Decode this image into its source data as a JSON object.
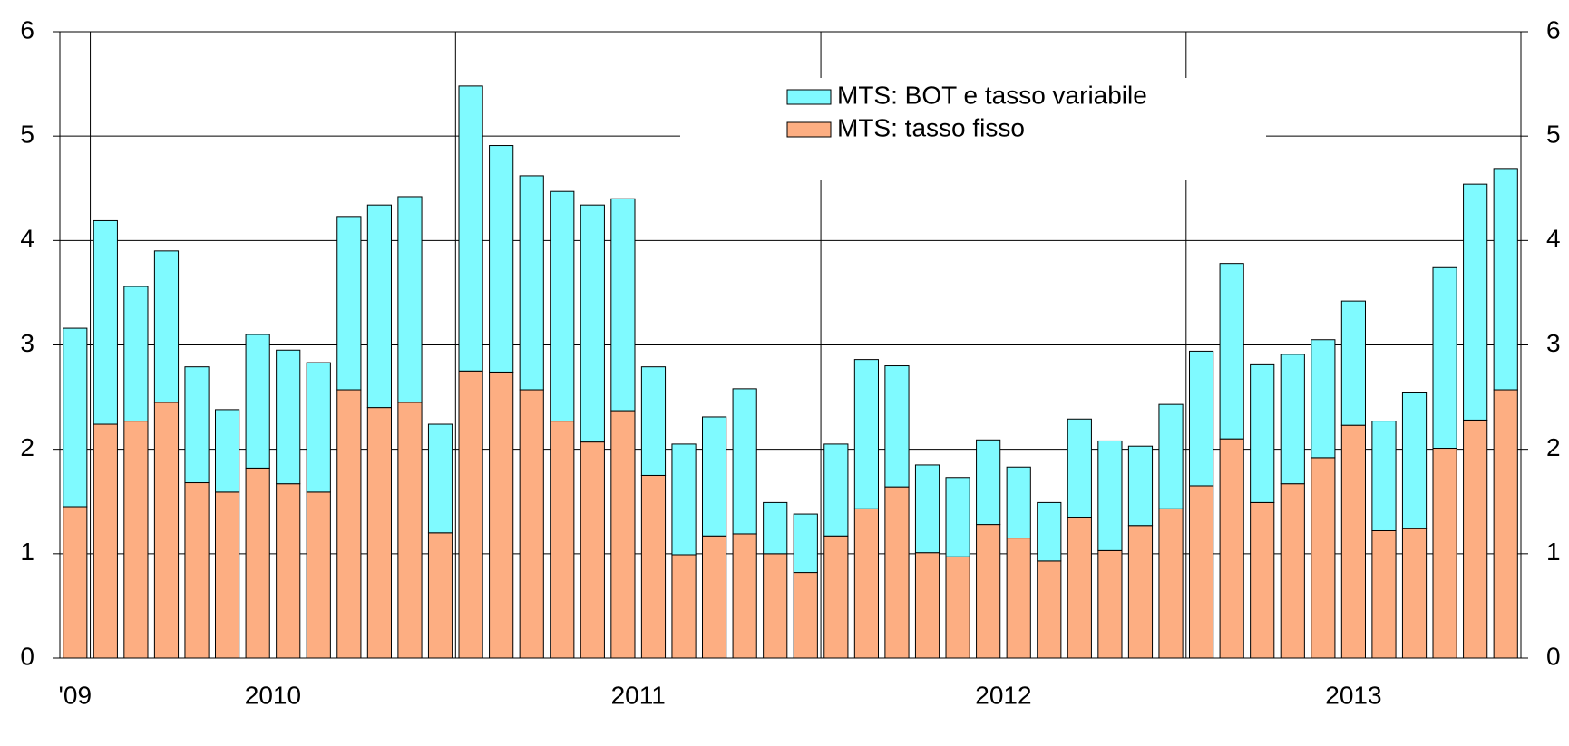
{
  "chart_data": {
    "type": "stacked-bar",
    "categories": [
      "'09",
      "2010",
      null,
      null,
      null,
      null,
      null,
      null,
      null,
      null,
      null,
      null,
      null,
      "2011",
      null,
      null,
      null,
      null,
      null,
      null,
      null,
      null,
      null,
      null,
      null,
      "2012",
      null,
      null,
      null,
      null,
      null,
      null,
      null,
      null,
      null,
      null,
      null,
      "2013",
      null,
      null,
      null,
      null,
      null,
      null,
      null,
      null,
      null,
      null
    ],
    "series": [
      {
        "name": "MTS: tasso fisso",
        "color": "#fdae82",
        "values": [
          1.45,
          2.24,
          2.27,
          2.45,
          1.68,
          1.59,
          1.82,
          1.67,
          1.59,
          2.57,
          2.4,
          2.45,
          1.2,
          2.75,
          2.74,
          2.57,
          2.27,
          2.07,
          2.37,
          1.75,
          0.99,
          1.17,
          1.19,
          1.0,
          0.82,
          1.17,
          1.43,
          1.64,
          1.01,
          0.97,
          1.28,
          1.15,
          0.93,
          1.35,
          1.03,
          1.27,
          1.43,
          1.65,
          2.1,
          1.49,
          1.67,
          1.92,
          2.23,
          1.22,
          1.24,
          2.01,
          2.28,
          2.57
        ]
      },
      {
        "name": "MTS: BOT e tasso variabile",
        "color": "#7ffaff",
        "values": [
          1.71,
          1.95,
          1.29,
          1.45,
          1.11,
          0.79,
          1.28,
          1.28,
          1.24,
          1.66,
          1.94,
          1.97,
          1.04,
          2.73,
          2.17,
          2.05,
          2.2,
          2.27,
          2.03,
          1.04,
          1.06,
          1.14,
          1.39,
          0.49,
          0.56,
          0.88,
          1.43,
          1.16,
          0.84,
          0.76,
          0.81,
          0.68,
          0.56,
          0.94,
          1.05,
          0.76,
          1.0,
          1.29,
          1.68,
          1.32,
          1.24,
          1.13,
          1.19,
          1.05,
          1.3,
          1.73,
          2.26,
          2.12
        ]
      }
    ],
    "ylim": [
      0,
      6
    ],
    "yticks": [
      0,
      1,
      2,
      3,
      4,
      5,
      6
    ],
    "y2lim": [
      0,
      6
    ],
    "y2ticks": [
      0,
      1,
      2,
      3,
      4,
      5,
      6
    ],
    "grid": true,
    "legend": "top"
  }
}
